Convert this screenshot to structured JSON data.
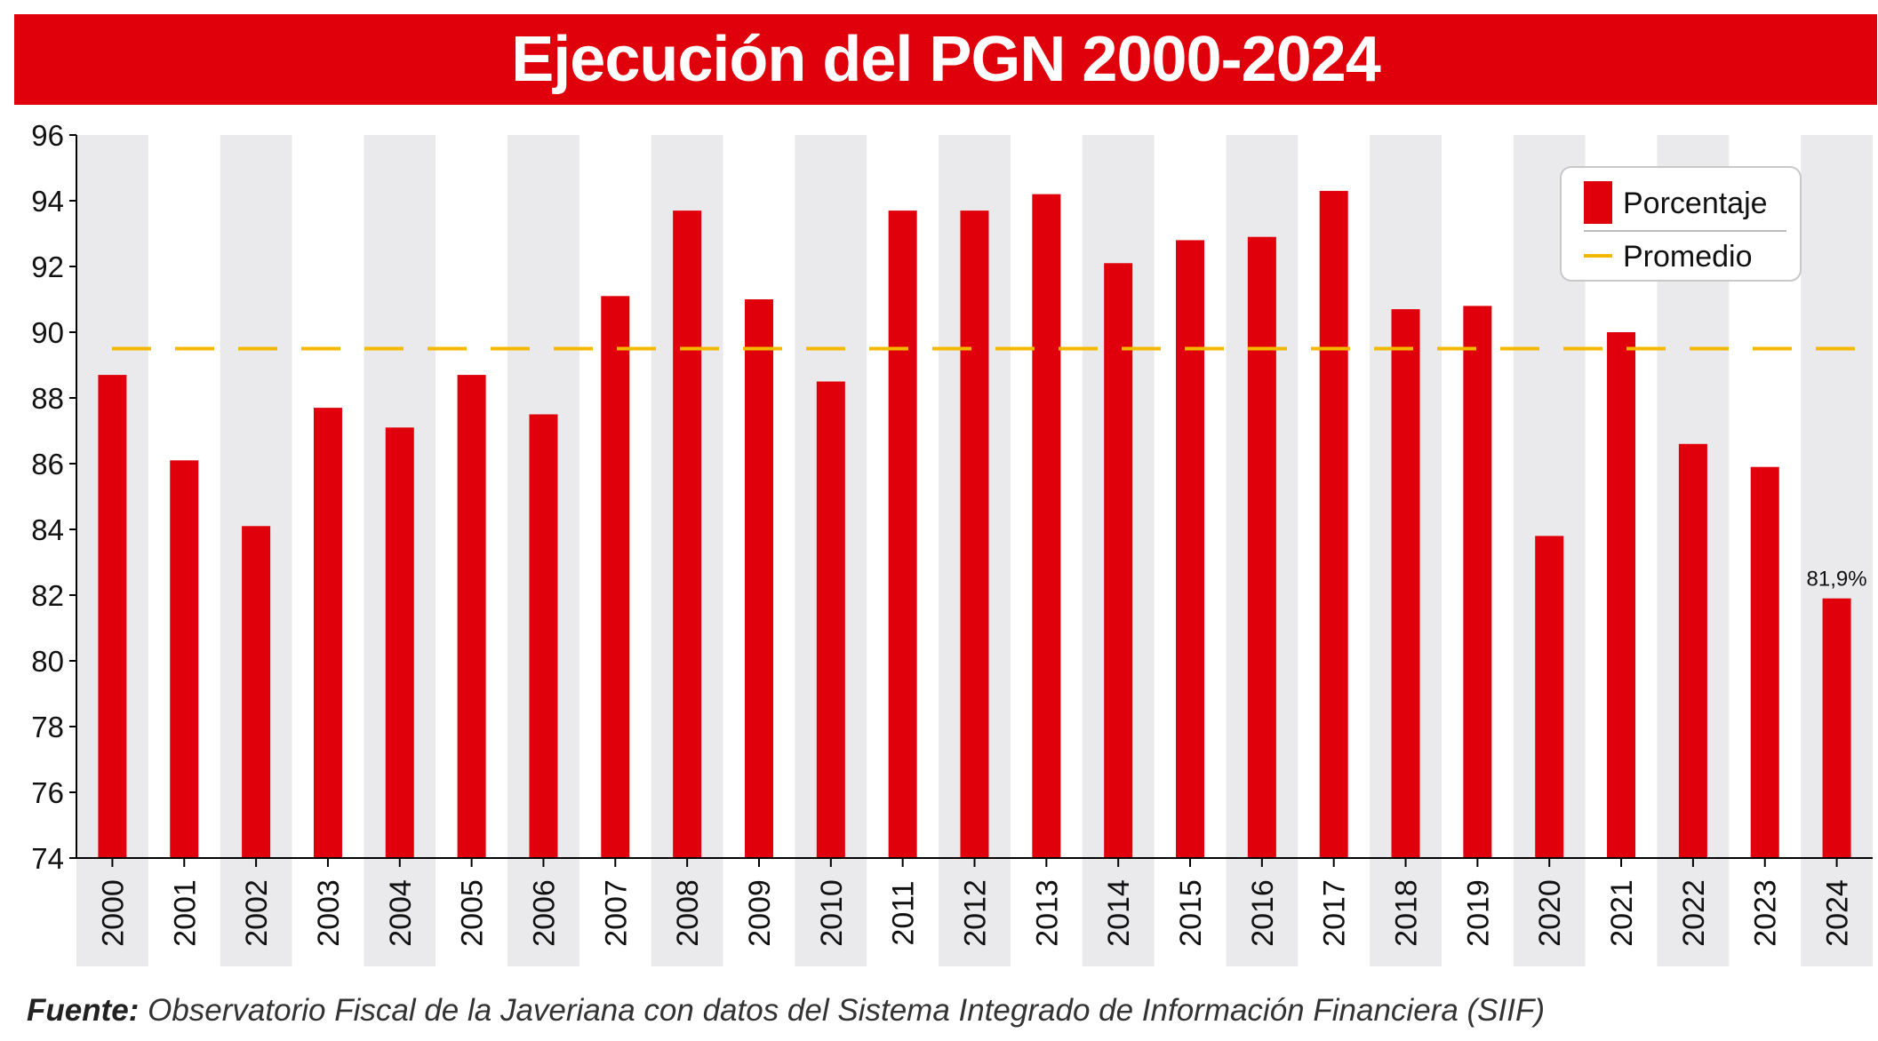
{
  "title": "Ejecución del PGN 2000-2024",
  "colors": {
    "title_background": "#e0000b",
    "bar": "#e0000b",
    "average_line": "#f5b800",
    "band": "#eaeaec",
    "axis": "#000000"
  },
  "chart_data": {
    "type": "bar",
    "title": "Ejecución del PGN 2000-2024",
    "categories": [
      "2000",
      "2001",
      "2002",
      "2003",
      "2004",
      "2005",
      "2006",
      "2007",
      "2008",
      "2009",
      "2010",
      "2011",
      "2012",
      "2013",
      "2014",
      "2015",
      "2016",
      "2017",
      "2018",
      "2019",
      "2020",
      "2021",
      "2022",
      "2023",
      "2024"
    ],
    "series": [
      {
        "name": "Porcentaje",
        "values": [
          88.7,
          86.1,
          84.1,
          87.7,
          87.1,
          88.7,
          87.5,
          91.1,
          93.7,
          91.0,
          88.5,
          93.7,
          93.7,
          94.2,
          92.1,
          92.8,
          92.9,
          94.3,
          90.7,
          90.8,
          83.8,
          90.0,
          86.6,
          85.9,
          81.9
        ]
      }
    ],
    "average": {
      "name": "Promedio",
      "value": 89.5
    },
    "ylim": [
      74,
      96
    ],
    "yticks": [
      74,
      76,
      78,
      80,
      82,
      84,
      86,
      88,
      90,
      92,
      94,
      96
    ],
    "data_labels": [
      {
        "category": "2024",
        "text": "81,9%"
      }
    ],
    "legend": {
      "placement": "top-right",
      "entries": [
        "Porcentaje",
        "Promedio"
      ]
    },
    "alternating_bands": true,
    "grid": false
  },
  "footer": {
    "label": "Fuente:",
    "text": " Observatorio Fiscal de la Javeriana con datos del Sistema Integrado de Información Financiera (SIIF)"
  }
}
